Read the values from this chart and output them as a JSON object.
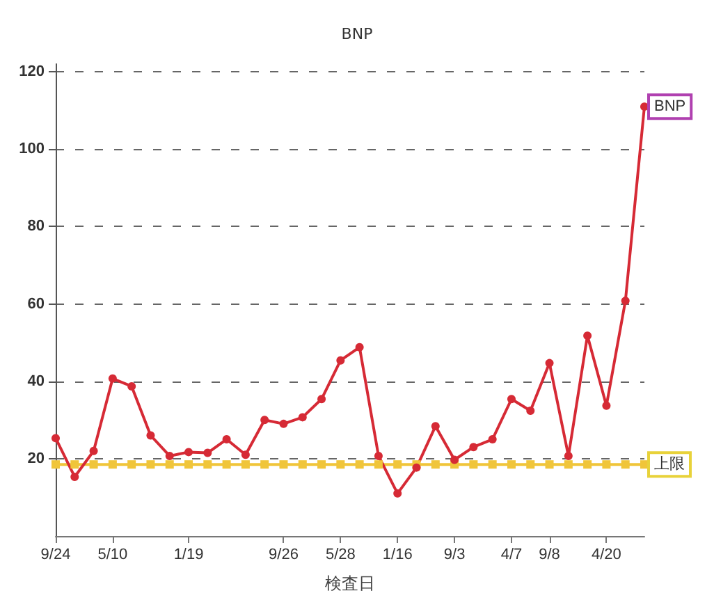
{
  "chart_data": {
    "type": "line",
    "title": "BNP",
    "xlabel": "検査日",
    "categories": [
      "9/24",
      null,
      null,
      "5/10",
      null,
      null,
      null,
      "1/19",
      null,
      null,
      null,
      null,
      "9/26",
      null,
      null,
      "5/28",
      null,
      null,
      "1/16",
      null,
      null,
      "9/3",
      null,
      null,
      "4/7",
      null,
      "9/8",
      null,
      null,
      "4/20",
      null,
      null
    ],
    "series": [
      {
        "name": "BNP",
        "color": "#d62a35",
        "values": [
          25.3,
          15.3,
          22,
          40.7,
          38.7,
          26,
          20.7,
          21.7,
          21.5,
          25,
          21,
          30,
          29,
          30.7,
          35.4,
          45.4,
          48.8,
          20.7,
          11,
          17.7,
          28.4,
          19.7,
          23,
          25,
          35.4,
          32.4,
          44.7,
          20.7,
          51.8,
          33.7,
          60.8,
          111
        ]
      },
      {
        "name": "上限",
        "color": "#f0c53a",
        "marker": "square",
        "values": [
          18.5,
          18.5,
          18.5,
          18.5,
          18.5,
          18.5,
          18.5,
          18.5,
          18.5,
          18.5,
          18.5,
          18.5,
          18.5,
          18.5,
          18.5,
          18.5,
          18.5,
          18.5,
          18.5,
          18.5,
          18.5,
          18.5,
          18.5,
          18.5,
          18.5,
          18.5,
          18.5,
          18.5,
          18.5,
          18.5,
          18.5,
          18.5
        ]
      }
    ],
    "ylim": [
      0,
      122
    ],
    "yticks": [
      20,
      40,
      60,
      80,
      100,
      120
    ],
    "grid": "y",
    "legend": false,
    "marker": "circle",
    "line_style": "solid"
  }
}
